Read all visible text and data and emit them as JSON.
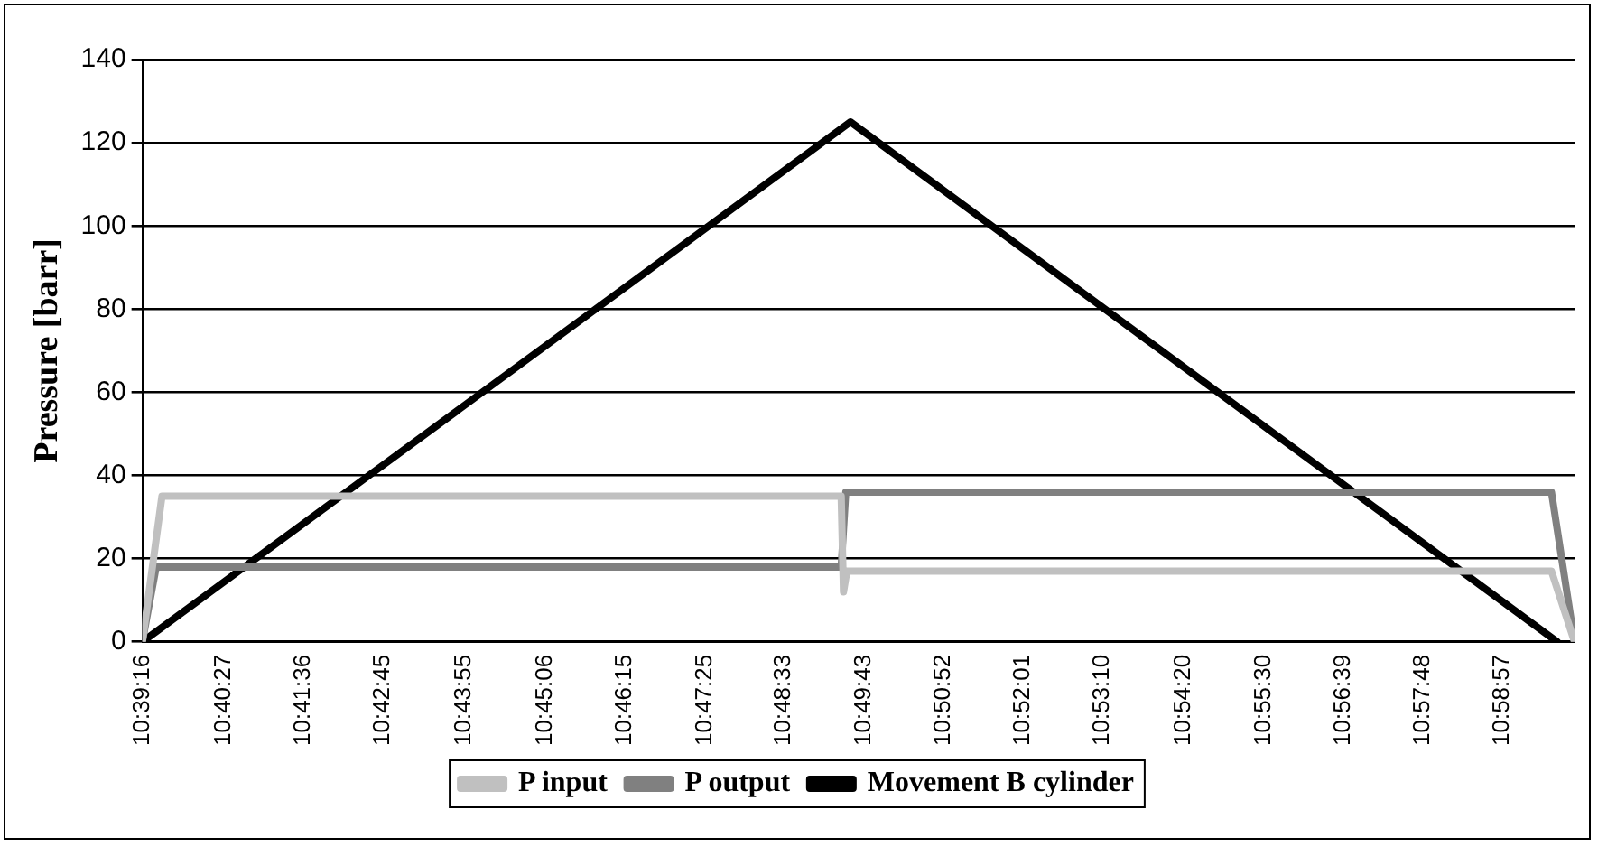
{
  "chart_data": {
    "type": "line",
    "ylabel": "Pressure [barr]",
    "xlim": [
      10.65444,
      11.0
    ],
    "ylim": [
      0,
      140
    ],
    "yticks": [
      0,
      20,
      40,
      60,
      80,
      100,
      120,
      140
    ],
    "xticks": [
      {
        "value": 10.65444,
        "label": "10:39:16"
      },
      {
        "value": 10.67417,
        "label": "10:40:27"
      },
      {
        "value": 10.69333,
        "label": "10:41:36"
      },
      {
        "value": 10.7125,
        "label": "10:42:45"
      },
      {
        "value": 10.73194,
        "label": "10:43:55"
      },
      {
        "value": 10.75167,
        "label": "10:45:06"
      },
      {
        "value": 10.77083,
        "label": "10:46:15"
      },
      {
        "value": 10.79028,
        "label": "10:47:25"
      },
      {
        "value": 10.80917,
        "label": "10:48:33"
      },
      {
        "value": 10.82861,
        "label": "10:49:43"
      },
      {
        "value": 10.84778,
        "label": "10:50:52"
      },
      {
        "value": 10.86694,
        "label": "10:52:01"
      },
      {
        "value": 10.88611,
        "label": "10:53:10"
      },
      {
        "value": 10.90556,
        "label": "10:54:20"
      },
      {
        "value": 10.925,
        "label": "10:55:30"
      },
      {
        "value": 10.94417,
        "label": "10:56:39"
      },
      {
        "value": 10.96333,
        "label": "10:57:48"
      },
      {
        "value": 10.9825,
        "label": "10:58:57"
      }
    ],
    "grid": "y",
    "legend": "bottom",
    "marker": "none",
    "line_style": "solid",
    "series": [
      {
        "name": "P input",
        "color": "#c0c0c0",
        "x": [
          10.65444,
          10.65917,
          10.82306,
          10.82361,
          10.82444,
          10.99444,
          11.0
        ],
        "values": [
          0,
          35,
          35,
          12,
          17,
          17,
          0
        ]
      },
      {
        "name": "P output",
        "color": "#808080",
        "x": [
          10.65444,
          10.65778,
          10.82306,
          10.82417,
          10.99444,
          11.0
        ],
        "values": [
          0,
          18,
          18,
          36,
          36,
          0
        ]
      },
      {
        "name": "Movement B cylinder",
        "color": "#000000",
        "x": [
          10.65444,
          10.8253,
          10.99583
        ],
        "values": [
          0,
          125,
          0
        ]
      }
    ]
  }
}
